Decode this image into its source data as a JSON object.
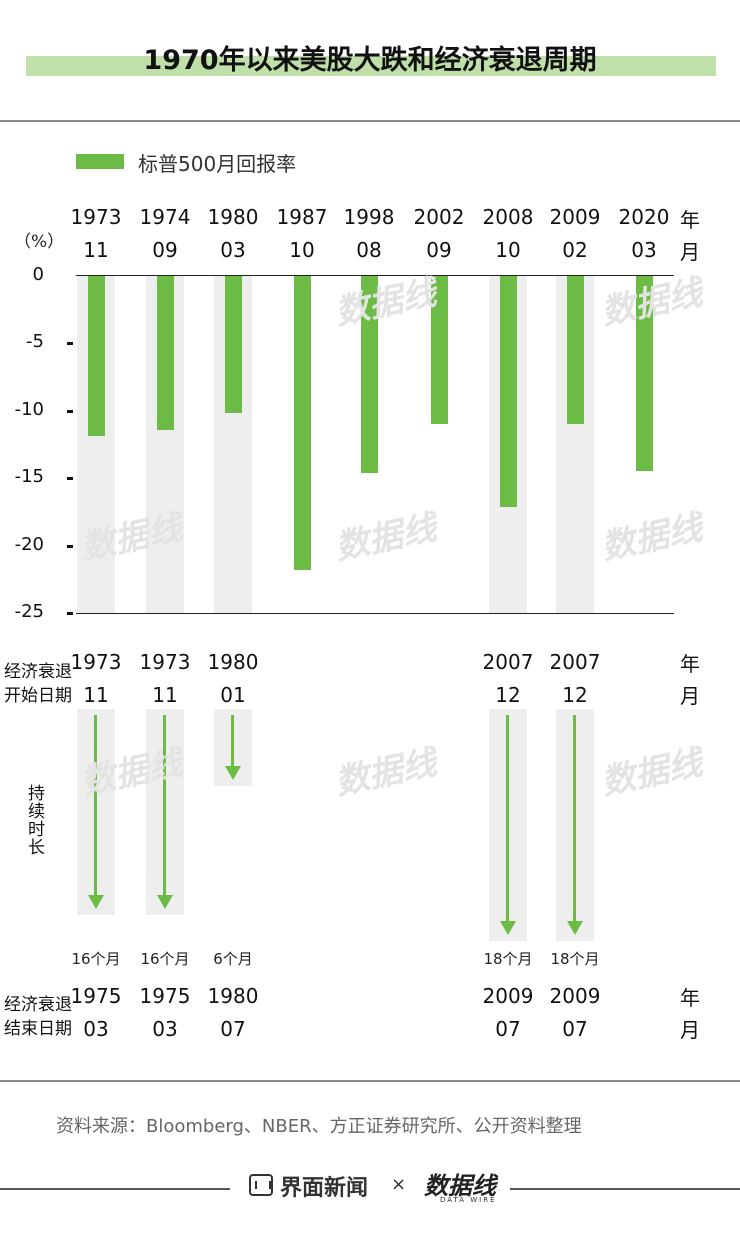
{
  "title": "1970年以来美股大跌和经济衰退周期",
  "colors": {
    "bar": "#6cbb45",
    "shade": "#eeeeee",
    "accent_bar": "#bfe0a8"
  },
  "legend": {
    "label": "标普500月回报率"
  },
  "y_unit": "（%）",
  "unit_year": "年",
  "unit_month": "月",
  "recession_start_label": [
    "经济衰退",
    "开始日期"
  ],
  "recession_end_label": [
    "经济衰退",
    "结束日期"
  ],
  "duration_label": "持续时长",
  "chart_data": {
    "type": "bar",
    "title": "1970年以来美股大跌和经济衰退周期",
    "series": [
      {
        "name": "标普500月回报率",
        "values": [
          -11.9,
          -11.4,
          -10.2,
          -21.8,
          -14.6,
          -11.0,
          -17.1,
          -11.0,
          -14.5
        ]
      }
    ],
    "categories": [
      {
        "year": "1973",
        "month": "11"
      },
      {
        "year": "1974",
        "month": "09"
      },
      {
        "year": "1980",
        "month": "03"
      },
      {
        "year": "1987",
        "month": "10"
      },
      {
        "year": "1998",
        "month": "08"
      },
      {
        "year": "2002",
        "month": "09"
      },
      {
        "year": "2008",
        "month": "10"
      },
      {
        "year": "2009",
        "month": "02"
      },
      {
        "year": "2020",
        "month": "03"
      }
    ],
    "recession_shaded": [
      true,
      true,
      true,
      false,
      false,
      false,
      true,
      true,
      false
    ],
    "ylim": [
      -25,
      0
    ],
    "yticks": [
      "0",
      "-5",
      "-10",
      "-15",
      "-20",
      "-25"
    ],
    "ylabel": "（%）",
    "recessions": [
      {
        "col": 0,
        "start_year": "1973",
        "start_month": "11",
        "duration_months": 16,
        "duration": "16个月",
        "end_year": "1975",
        "end_month": "03"
      },
      {
        "col": 1,
        "start_year": "1973",
        "start_month": "11",
        "duration_months": 16,
        "duration": "16个月",
        "end_year": "1975",
        "end_month": "03"
      },
      {
        "col": 2,
        "start_year": "1980",
        "start_month": "01",
        "duration_months": 6,
        "duration": "6个月",
        "end_year": "1980",
        "end_month": "07"
      },
      {
        "col": 6,
        "start_year": "2007",
        "start_month": "12",
        "duration_months": 18,
        "duration": "18个月",
        "end_year": "2009",
        "end_month": "07"
      },
      {
        "col": 7,
        "start_year": "2007",
        "start_month": "12",
        "duration_months": 18,
        "duration": "18个月",
        "end_year": "2009",
        "end_month": "07"
      }
    ]
  },
  "footer": {
    "source": "资料来源：Bloomberg、NBER、方正证券研究所、公开资料整理",
    "brand_left": "界面新闻",
    "times": "×",
    "brand_right": "数据线",
    "brand_right_sub": "DATA WIRE"
  }
}
